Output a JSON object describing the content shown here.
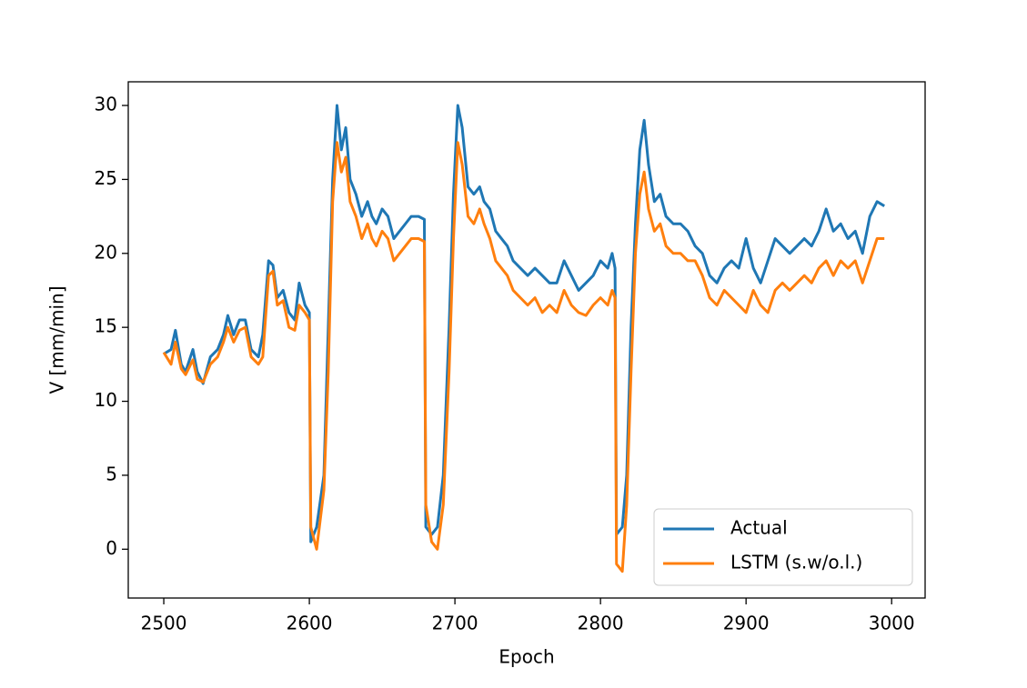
{
  "chart_data": {
    "type": "line",
    "xlabel": "Epoch",
    "ylabel": "V [mm/min]",
    "x": [
      2500,
      2505,
      2508,
      2512,
      2515,
      2520,
      2523,
      2527,
      2532,
      2537,
      2541,
      2544,
      2548,
      2552,
      2556,
      2560,
      2565,
      2568,
      2572,
      2575,
      2578,
      2582,
      2586,
      2590,
      2593,
      2597,
      2600,
      2601,
      2605,
      2610,
      2613,
      2616,
      2619,
      2622,
      2625,
      2628,
      2632,
      2636,
      2640,
      2643,
      2646,
      2650,
      2654,
      2658,
      2662,
      2666,
      2670,
      2675,
      2679,
      2680,
      2684,
      2688,
      2692,
      2696,
      2699,
      2702,
      2705,
      2709,
      2713,
      2717,
      2720,
      2724,
      2728,
      2732,
      2736,
      2740,
      2745,
      2750,
      2755,
      2760,
      2765,
      2770,
      2775,
      2780,
      2785,
      2790,
      2795,
      2800,
      2805,
      2808,
      2810,
      2811,
      2815,
      2818,
      2821,
      2824,
      2827,
      2830,
      2833,
      2837,
      2841,
      2845,
      2850,
      2855,
      2860,
      2865,
      2870,
      2875,
      2880,
      2885,
      2890,
      2895,
      2900,
      2905,
      2910,
      2915,
      2920,
      2925,
      2930,
      2935,
      2940,
      2945,
      2950,
      2955,
      2960,
      2965,
      2970,
      2975,
      2980,
      2985,
      2990,
      2995
    ],
    "series": [
      {
        "name": "Actual",
        "color": "#1f77b4",
        "values": [
          13.2,
          13.5,
          14.8,
          12.5,
          12.0,
          13.5,
          12.0,
          11.2,
          13.0,
          13.5,
          14.5,
          15.8,
          14.5,
          15.5,
          15.5,
          13.5,
          13.0,
          14.5,
          19.5,
          19.2,
          17.0,
          17.5,
          16.0,
          15.5,
          18.0,
          16.5,
          16.0,
          0.5,
          1.5,
          5.0,
          15.0,
          25.0,
          30.0,
          27.0,
          28.5,
          25.0,
          24.0,
          22.5,
          23.5,
          22.5,
          22.0,
          23.0,
          22.5,
          21.0,
          21.5,
          22.0,
          22.5,
          22.5,
          22.3,
          1.5,
          1.0,
          1.5,
          5.0,
          15.0,
          24.0,
          30.0,
          28.5,
          24.5,
          24.0,
          24.5,
          23.5,
          23.0,
          21.5,
          21.0,
          20.5,
          19.5,
          19.0,
          18.5,
          19.0,
          18.5,
          18.0,
          18.0,
          19.5,
          18.5,
          17.5,
          18.0,
          18.5,
          19.5,
          19.0,
          20.0,
          19.0,
          1.0,
          1.5,
          5.0,
          15.0,
          22.0,
          27.0,
          29.0,
          26.0,
          23.5,
          24.0,
          22.5,
          22.0,
          22.0,
          21.5,
          20.5,
          20.0,
          18.5,
          18.0,
          19.0,
          19.5,
          19.0,
          21.0,
          19.0,
          18.0,
          19.5,
          21.0,
          20.5,
          20.0,
          20.5,
          21.0,
          20.5,
          21.5,
          23.0,
          21.5,
          22.0,
          21.0,
          21.5,
          20.0,
          22.5,
          23.5,
          23.2
        ]
      },
      {
        "name": "LSTM (s.w/o.l.)",
        "color": "#ff7f0e",
        "values": [
          13.3,
          12.5,
          14.0,
          12.2,
          11.8,
          12.8,
          11.5,
          11.3,
          12.5,
          13.0,
          14.0,
          15.0,
          14.0,
          14.8,
          15.0,
          13.0,
          12.5,
          13.0,
          18.5,
          18.8,
          16.5,
          16.8,
          15.0,
          14.8,
          16.5,
          16.0,
          15.5,
          1.5,
          0.0,
          4.0,
          12.0,
          23.5,
          27.5,
          25.5,
          26.5,
          23.5,
          22.5,
          21.0,
          22.0,
          21.0,
          20.5,
          21.5,
          21.0,
          19.5,
          20.0,
          20.5,
          21.0,
          21.0,
          20.8,
          3.0,
          0.5,
          0.0,
          3.0,
          12.0,
          21.0,
          27.5,
          26.0,
          22.5,
          22.0,
          23.0,
          22.0,
          21.0,
          19.5,
          19.0,
          18.5,
          17.5,
          17.0,
          16.5,
          17.0,
          16.0,
          16.5,
          16.0,
          17.5,
          16.5,
          16.0,
          15.8,
          16.5,
          17.0,
          16.5,
          17.5,
          17.0,
          -1.0,
          -1.5,
          3.0,
          12.0,
          20.0,
          24.0,
          25.5,
          23.0,
          21.5,
          22.0,
          20.5,
          20.0,
          20.0,
          19.5,
          19.5,
          18.5,
          17.0,
          16.5,
          17.5,
          17.0,
          16.5,
          16.0,
          17.5,
          16.5,
          16.0,
          17.5,
          18.0,
          17.5,
          18.0,
          18.5,
          18.0,
          19.0,
          19.5,
          18.5,
          19.5,
          19.0,
          19.5,
          18.0,
          19.5,
          21.0,
          21.0
        ]
      }
    ],
    "xlim": [
      2475.6,
      3023
    ],
    "ylim": [
      -3.3,
      31.6
    ],
    "xticks": [
      2500,
      2600,
      2700,
      2800,
      2900,
      3000
    ],
    "yticks": [
      0,
      5,
      10,
      15,
      20,
      25,
      30
    ],
    "legend": "lower right"
  }
}
